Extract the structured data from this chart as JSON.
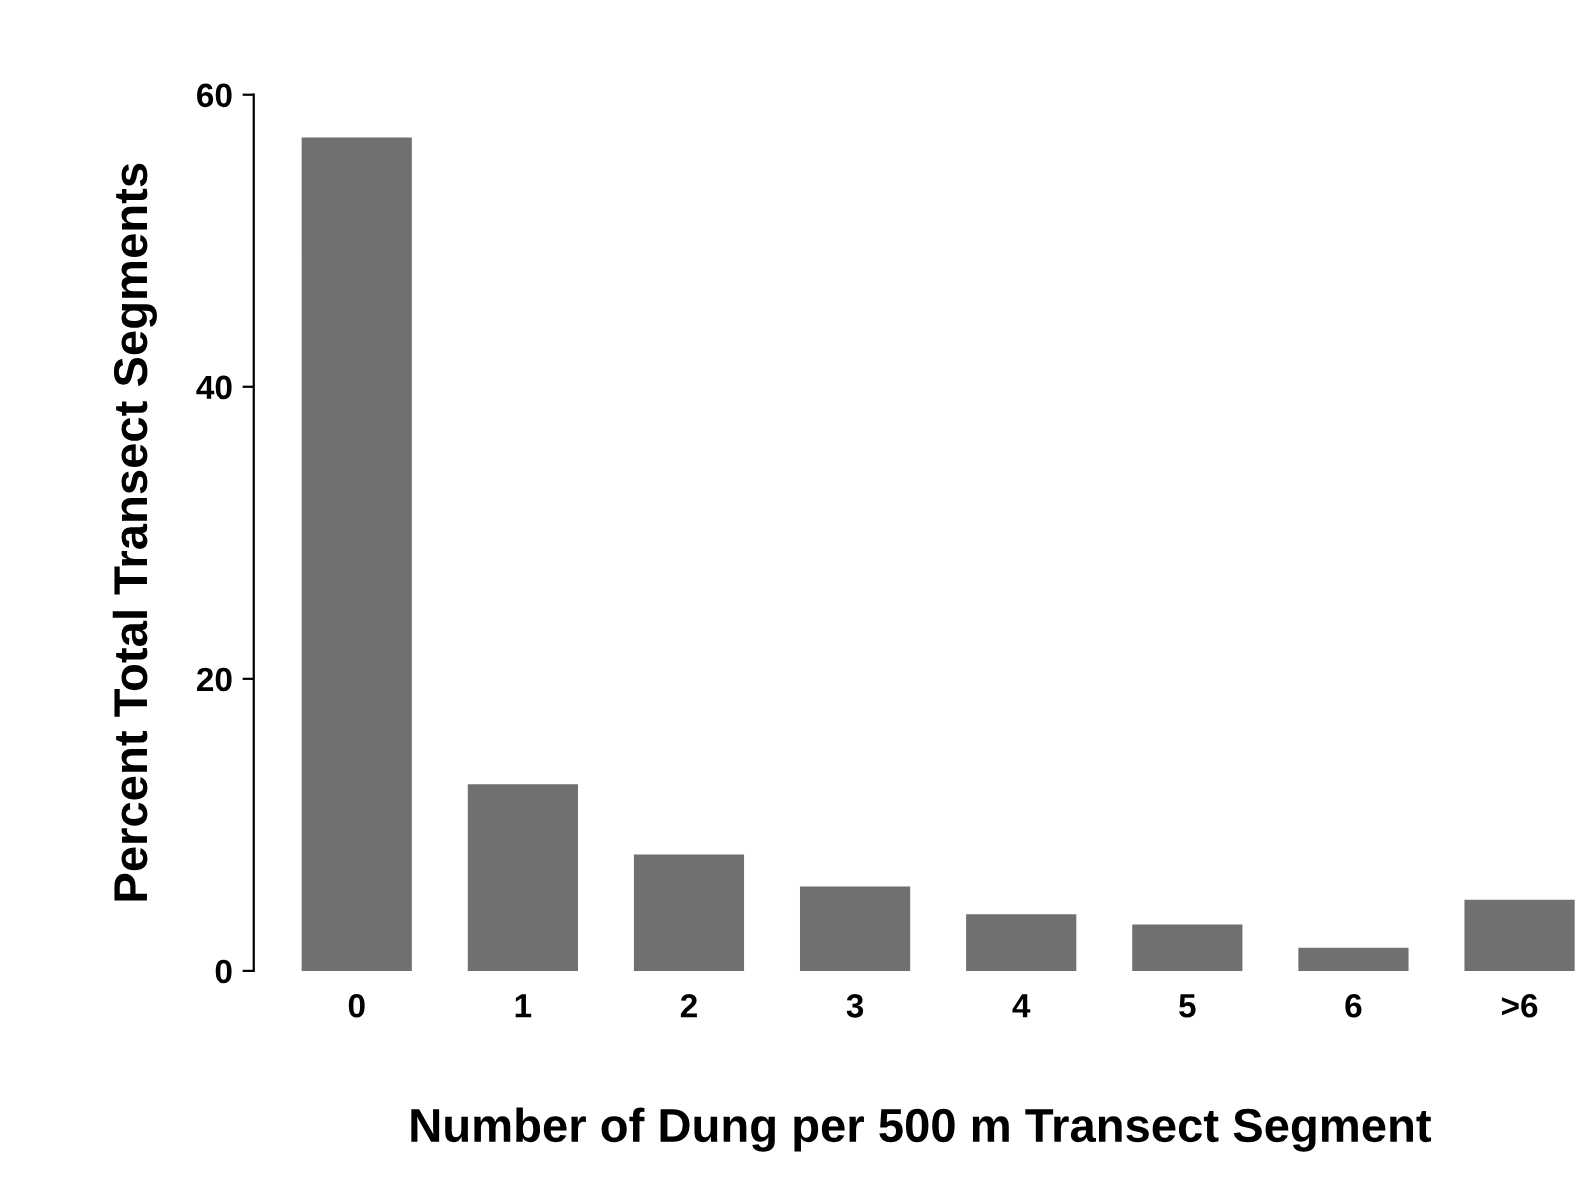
{
  "chart_data": {
    "type": "bar",
    "xlabel": "Number of Dung per 500 m Transect Segment",
    "ylabel": "Percent Total Transect Segments",
    "categories": [
      "0",
      "1",
      "2",
      "3",
      "4",
      "5",
      "6",
      ">6"
    ],
    "values": [
      57,
      12.7,
      7.9,
      5.7,
      3.8,
      3.1,
      1.5,
      4.8
    ],
    "color": "#707070",
    "ylim": [
      0,
      60
    ],
    "yticks": [
      0,
      20,
      40,
      60
    ],
    "grid": false,
    "legend": false
  }
}
